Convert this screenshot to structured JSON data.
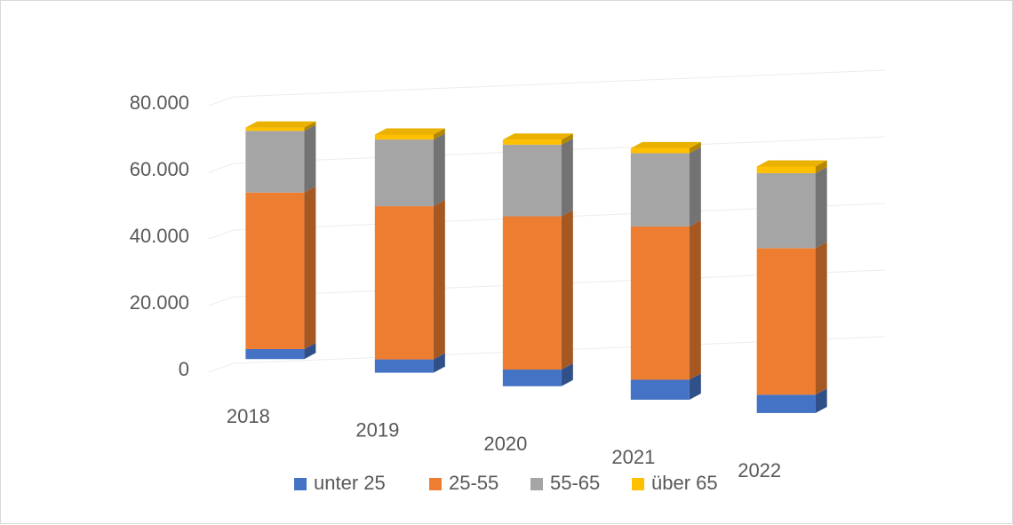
{
  "chart_data": {
    "type": "bar",
    "stacked": true,
    "three_d": true,
    "categories": [
      "2018",
      "2019",
      "2020",
      "2021",
      "2022"
    ],
    "series": [
      {
        "name": "unter 25",
        "color": "#4472C4",
        "values": [
          3000,
          4000,
          5000,
          6000,
          5500
        ]
      },
      {
        "name": "25-55",
        "color": "#ED7D31",
        "values": [
          47000,
          46000,
          46000,
          46000,
          44000
        ]
      },
      {
        "name": "55-65",
        "color": "#A5A5A5",
        "values": [
          18500,
          20000,
          21500,
          22000,
          22500
        ]
      },
      {
        "name": "über 65",
        "color": "#FFC000",
        "values": [
          1000,
          1500,
          1500,
          1500,
          2000
        ]
      }
    ],
    "y_ticks": [
      "0",
      "20.000",
      "40.000",
      "60.000",
      "80.000"
    ],
    "ylim": [
      0,
      80000
    ],
    "grid": true,
    "legend_position": "bottom"
  }
}
